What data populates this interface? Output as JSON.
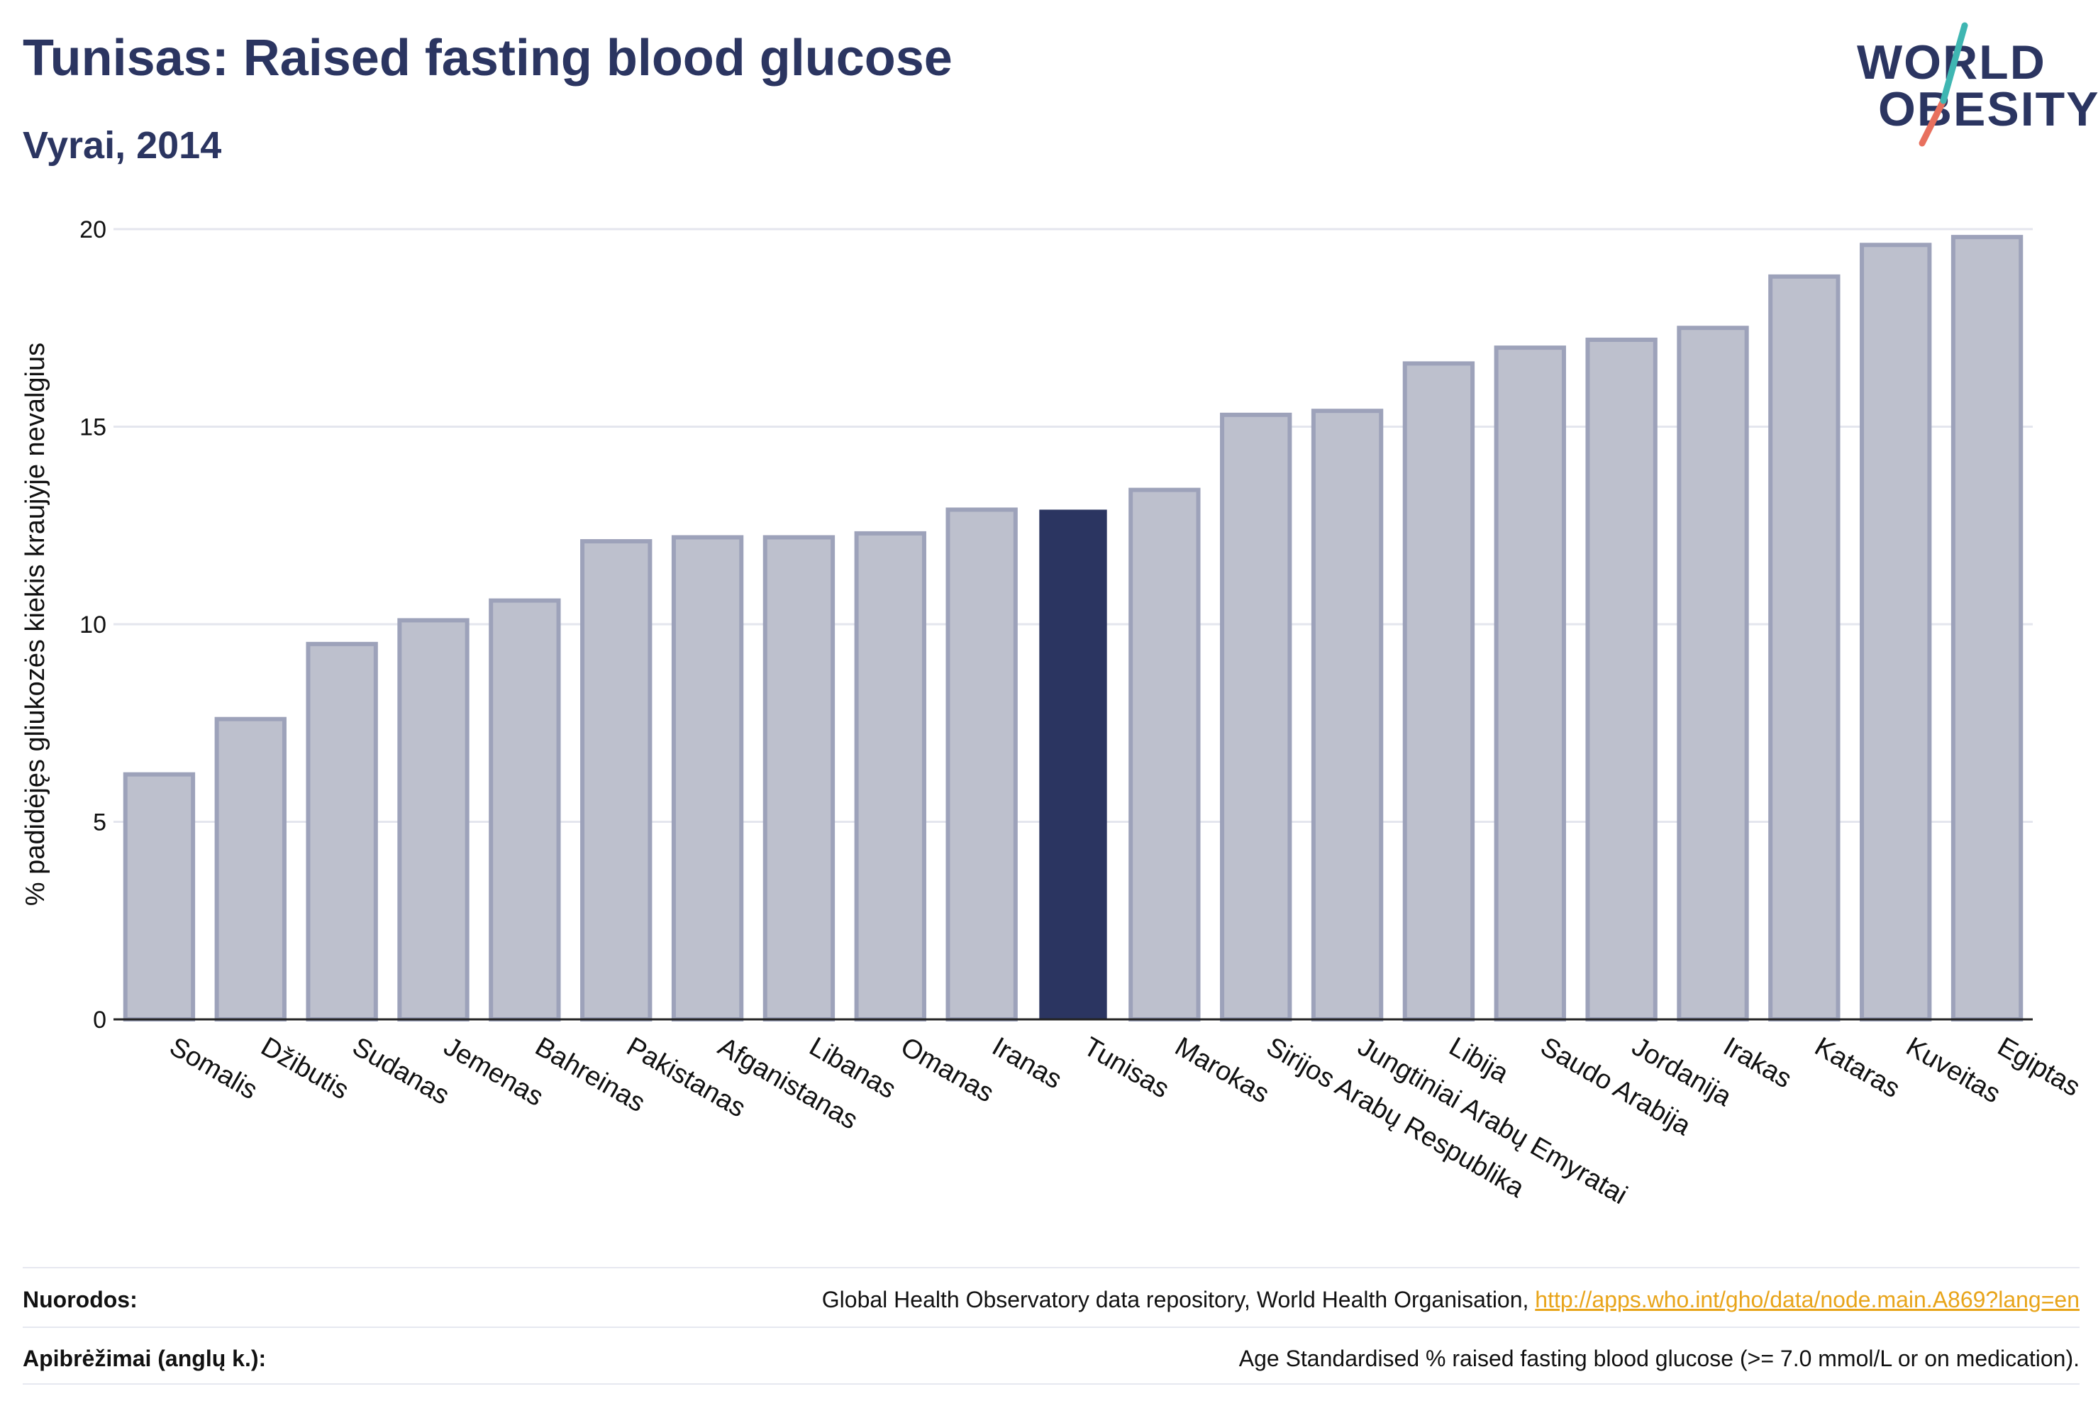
{
  "header": {
    "title": "Tunisas: Raised fasting blood glucose",
    "subtitle": "Vyrai, 2014"
  },
  "logo": {
    "line1": "WORLD",
    "line2": "OBESITY"
  },
  "colors": {
    "bar": "#bdc0cd",
    "bar_stroke": "#9da2ba",
    "highlight": "#2b3561",
    "grid": "#e4e6ee",
    "text": "#2b3561",
    "logo_teal": "#3fb6b2",
    "logo_coral": "#e8705e",
    "link": "#e8a41a"
  },
  "chart_data": {
    "type": "bar",
    "title": "Tunisas: Raised fasting blood glucose",
    "subtitle": "Vyrai, 2014",
    "ylabel": "% padidėjęs gliukozės kiekis kraujyje nevalgius",
    "xlabel": "",
    "ylim": [
      0,
      20
    ],
    "yticks": [
      0,
      5,
      10,
      15,
      20
    ],
    "grid": true,
    "highlight": "Tunisas",
    "categories": [
      "Somalis",
      "Džibutis",
      "Sudanas",
      "Jemenas",
      "Bahreinas",
      "Pakistanas",
      "Afganistanas",
      "Libanas",
      "Omanas",
      "Iranas",
      "Tunisas",
      "Marokas",
      "Sirijos Arabų Respublika",
      "Jungtiniai Arabų Emyratai",
      "Libija",
      "Saudo Arabija",
      "Jordanija",
      "Irakas",
      "Kataras",
      "Kuveitas",
      "Egiptas"
    ],
    "values": [
      6.2,
      7.6,
      9.5,
      10.1,
      10.6,
      12.1,
      12.2,
      12.2,
      12.3,
      12.9,
      12.9,
      13.4,
      15.3,
      15.4,
      16.6,
      17.0,
      17.2,
      17.5,
      18.8,
      19.6,
      19.8
    ]
  },
  "footer": {
    "sources_label": "Nuorodos:",
    "sources_text": "Global Health Observatory data repository, World Health Organisation, ",
    "sources_link": "http://apps.who.int/gho/data/node.main.A869?lang=en",
    "definitions_label": "Apibrėžimai (anglų k.):",
    "definitions_text": "Age Standardised % raised fasting blood glucose (>= 7.0 mmol/L or on medication)."
  }
}
